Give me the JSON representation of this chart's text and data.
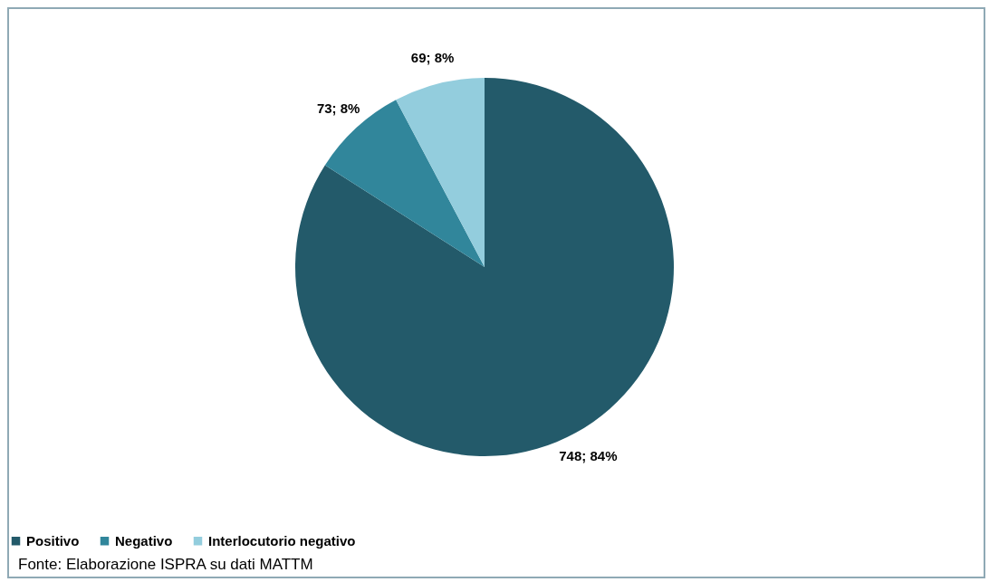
{
  "chart_data": {
    "type": "pie",
    "categories": [
      "Positivo",
      "Negativo",
      "Interlocutorio negativo"
    ],
    "values": [
      748,
      73,
      69
    ],
    "colors": [
      "#235a6a",
      "#31869b",
      "#93cddd"
    ],
    "value_labels": [
      "748; 84%",
      "73; 8%",
      "69; 8%"
    ],
    "legend": "bottom",
    "annotations": [
      "Fonte: Elaborazione ISPRA su dati MATTM"
    ]
  }
}
